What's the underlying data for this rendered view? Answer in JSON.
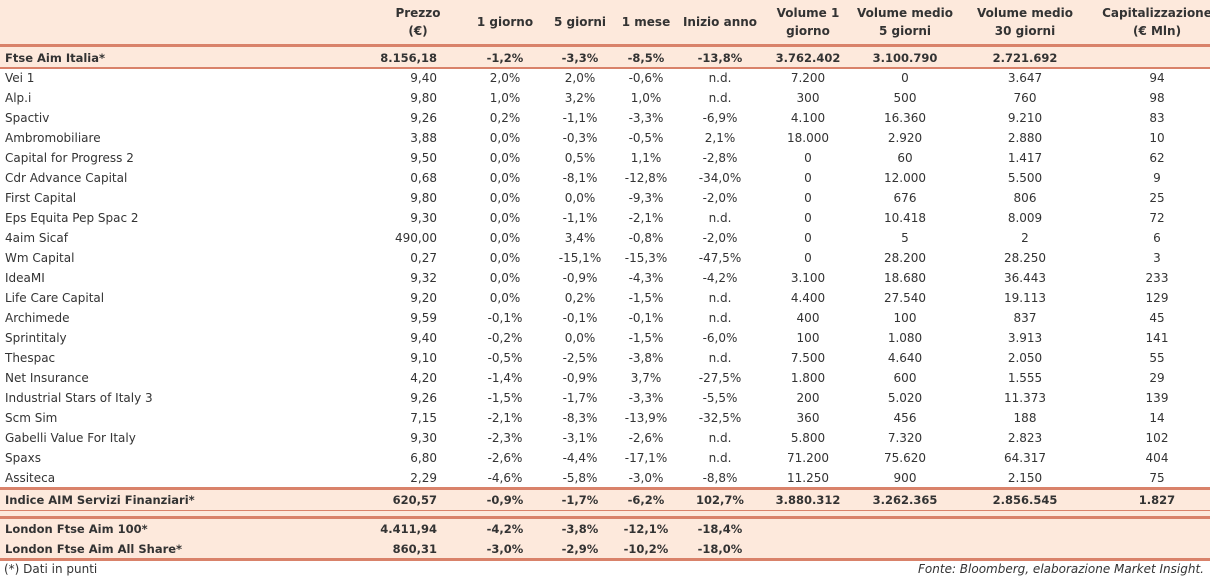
{
  "headers": [
    "Prezzo (€)",
    "1 giorno",
    "5 giorni",
    "1 mese",
    "Inizio anno",
    "Volume 1 giorno",
    "Volume medio 5 giorni",
    "Volume medio 30 giorni",
    "Capitalizzazione (€ Mln)"
  ],
  "header_lines": [
    [
      "Prezzo",
      "(€)"
    ],
    [
      "1 giorno"
    ],
    [
      "5 giorni"
    ],
    [
      "1 mese"
    ],
    [
      "Inizio anno"
    ],
    [
      "Volume 1",
      "giorno"
    ],
    [
      "Volume medio",
      "5 giorni"
    ],
    [
      "Volume medio",
      "30 giorni"
    ],
    [
      "Capitalizzazione",
      "(€ Mln)"
    ]
  ],
  "index_row": [
    "Ftse Aim Italia*",
    "8.156,18",
    "-1,2%",
    "-3,3%",
    "-8,5%",
    "-13,8%",
    "3.762.402",
    "3.100.790",
    "2.721.692",
    ""
  ],
  "rows": [
    [
      "Vei 1",
      "9,40",
      "2,0%",
      "2,0%",
      "-0,6%",
      "n.d.",
      "7.200",
      "0",
      "3.647",
      "94"
    ],
    [
      "Alp.i",
      "9,80",
      "1,0%",
      "3,2%",
      "1,0%",
      "n.d.",
      "300",
      "500",
      "760",
      "98"
    ],
    [
      "Spactiv",
      "9,26",
      "0,2%",
      "-1,1%",
      "-3,3%",
      "-6,9%",
      "4.100",
      "16.360",
      "9.210",
      "83"
    ],
    [
      "Ambromobiliare",
      "3,88",
      "0,0%",
      "-0,3%",
      "-0,5%",
      "2,1%",
      "18.000",
      "2.920",
      "2.880",
      "10"
    ],
    [
      "Capital for Progress 2",
      "9,50",
      "0,0%",
      "0,5%",
      "1,1%",
      "-2,8%",
      "0",
      "60",
      "1.417",
      "62"
    ],
    [
      "Cdr Advance Capital",
      "0,68",
      "0,0%",
      "-8,1%",
      "-12,8%",
      "-34,0%",
      "0",
      "12.000",
      "5.500",
      "9"
    ],
    [
      "First Capital",
      "9,80",
      "0,0%",
      "0,0%",
      "-9,3%",
      "-2,0%",
      "0",
      "676",
      "806",
      "25"
    ],
    [
      "Eps Equita Pep Spac 2",
      "9,30",
      "0,0%",
      "-1,1%",
      "-2,1%",
      "n.d.",
      "0",
      "10.418",
      "8.009",
      "72"
    ],
    [
      "4aim Sicaf",
      "490,00",
      "0,0%",
      "3,4%",
      "-0,8%",
      "-2,0%",
      "0",
      "5",
      "2",
      "6"
    ],
    [
      "Wm Capital",
      "0,27",
      "0,0%",
      "-15,1%",
      "-15,3%",
      "-47,5%",
      "0",
      "28.200",
      "28.250",
      "3"
    ],
    [
      "IdeaMI",
      "9,32",
      "0,0%",
      "-0,9%",
      "-4,3%",
      "-4,2%",
      "3.100",
      "18.680",
      "36.443",
      "233"
    ],
    [
      "Life Care Capital",
      "9,20",
      "0,0%",
      "0,2%",
      "-1,5%",
      "n.d.",
      "4.400",
      "27.540",
      "19.113",
      "129"
    ],
    [
      "Archimede",
      "9,59",
      "-0,1%",
      "-0,1%",
      "-0,1%",
      "n.d.",
      "400",
      "100",
      "837",
      "45"
    ],
    [
      "Sprintitaly",
      "9,40",
      "-0,2%",
      "0,0%",
      "-1,5%",
      "-6,0%",
      "100",
      "1.080",
      "3.913",
      "141"
    ],
    [
      "Thespac",
      "9,10",
      "-0,5%",
      "-2,5%",
      "-3,8%",
      "n.d.",
      "7.500",
      "4.640",
      "2.050",
      "55"
    ],
    [
      "Net Insurance",
      "4,20",
      "-1,4%",
      "-0,9%",
      "3,7%",
      "-27,5%",
      "1.800",
      "600",
      "1.555",
      "29"
    ],
    [
      "Industrial Stars of Italy 3",
      "9,26",
      "-1,5%",
      "-1,7%",
      "-3,3%",
      "-5,5%",
      "200",
      "5.020",
      "11.373",
      "139"
    ],
    [
      "Scm Sim",
      "7,15",
      "-2,1%",
      "-8,3%",
      "-13,9%",
      "-32,5%",
      "360",
      "456",
      "188",
      "14"
    ],
    [
      "Gabelli Value For Italy",
      "9,30",
      "-2,3%",
      "-3,1%",
      "-2,6%",
      "n.d.",
      "5.800",
      "7.320",
      "2.823",
      "102"
    ],
    [
      "Spaxs",
      "6,80",
      "-2,6%",
      "-4,4%",
      "-17,1%",
      "n.d.",
      "71.200",
      "75.620",
      "64.317",
      "404"
    ],
    [
      "Assiteca",
      "2,29",
      "-4,6%",
      "-5,8%",
      "-3,0%",
      "-8,8%",
      "11.250",
      "900",
      "2.150",
      "75"
    ]
  ],
  "sector_row": [
    "Indice AIM Servizi Finanziari*",
    "620,57",
    "-0,9%",
    "-1,7%",
    "-6,2%",
    "102,7%",
    "3.880.312",
    "3.262.365",
    "2.856.545",
    "1.827"
  ],
  "london_rows": [
    [
      "London Ftse Aim 100*",
      "4.411,94",
      "-4,2%",
      "-3,8%",
      "-12,1%",
      "-18,4%",
      "",
      "",
      "",
      ""
    ],
    [
      "London Ftse Aim All Share*",
      "860,31",
      "-3,0%",
      "-2,9%",
      "-10,2%",
      "-18,0%",
      "",
      "",
      "",
      ""
    ]
  ],
  "footnote": "(*) Dati in punti",
  "source": "Fonte: Bloomberg, elaborazione Market Insight."
}
